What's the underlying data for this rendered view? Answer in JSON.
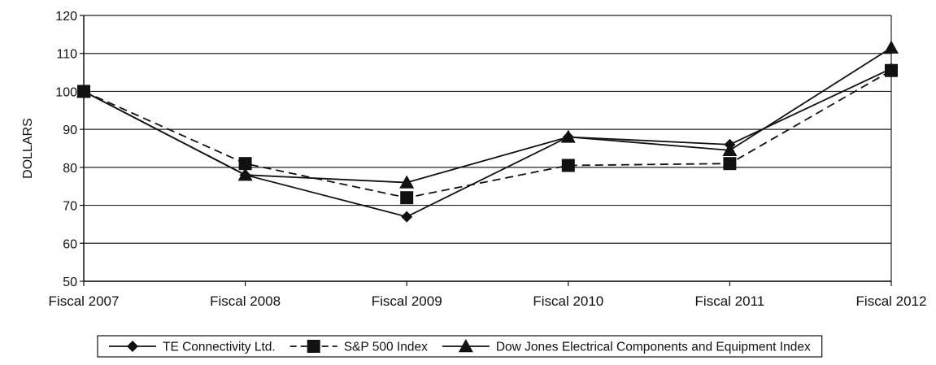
{
  "chart_data": {
    "type": "line",
    "title": "",
    "xlabel": "",
    "ylabel": "DOLLARS",
    "categories": [
      "Fiscal 2007",
      "Fiscal 2008",
      "Fiscal 2009",
      "Fiscal 2010",
      "Fiscal 2011",
      "Fiscal 2012"
    ],
    "ylim": [
      50,
      120
    ],
    "yticks": [
      50,
      60,
      70,
      80,
      90,
      100,
      110,
      120
    ],
    "grid": "horizontal",
    "legend_position": "bottom",
    "series": [
      {
        "name": "TE Connectivity Ltd.",
        "values": [
          100,
          78,
          67,
          88,
          86,
          106
        ],
        "marker": "diamond",
        "line_style": "solid"
      },
      {
        "name": "S&P 500 Index",
        "values": [
          100,
          81,
          72,
          80.5,
          81,
          105.5
        ],
        "marker": "square",
        "line_style": "dashed"
      },
      {
        "name": "Dow Jones Electrical Components and Equipment Index",
        "values": [
          100,
          78,
          76,
          88,
          84.5,
          111.5
        ],
        "marker": "triangle",
        "line_style": "solid"
      }
    ],
    "colors": {
      "line": "#111111",
      "grid": "#222222",
      "background": "#ffffff"
    }
  }
}
